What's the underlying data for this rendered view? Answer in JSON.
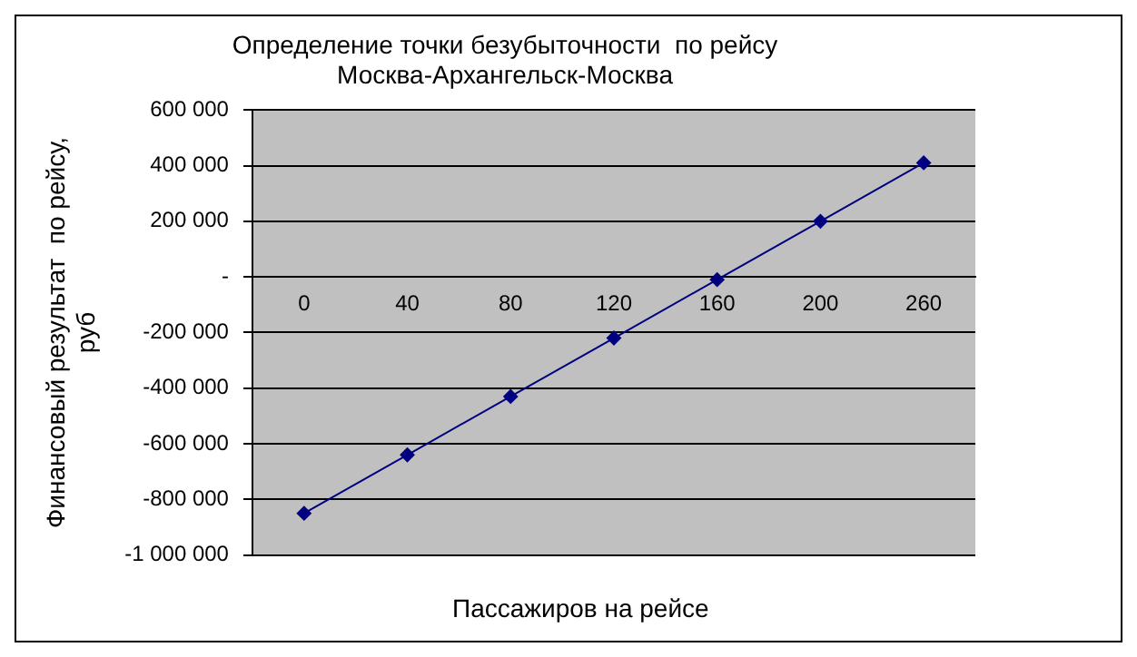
{
  "chart_data": {
    "type": "line",
    "title": "Определение точки безубыточности  по рейсу\nМосква-Архангельск-Москва",
    "xlabel": "Пассажиров на рейсе",
    "ylabel": "Финансовый результат  по рейсу,\nруб",
    "categories": [
      "0",
      "40",
      "80",
      "120",
      "160",
      "200",
      "260"
    ],
    "series": [
      {
        "color": "#000080",
        "values": [
          -850000,
          -640000,
          -430000,
          -220000,
          -10000,
          200000,
          410000
        ]
      }
    ],
    "ylim": [
      -1000000,
      600000
    ],
    "yticks": [
      {
        "value": -1000000,
        "label": "-1 000 000"
      },
      {
        "value": -800000,
        "label": "-800 000"
      },
      {
        "value": -600000,
        "label": "-600 000"
      },
      {
        "value": -400000,
        "label": "-400 000"
      },
      {
        "value": -200000,
        "label": "-200 000"
      },
      {
        "value": 0,
        "label": "-"
      },
      {
        "value": 200000,
        "label": "200 000"
      },
      {
        "value": 400000,
        "label": "400 000"
      },
      {
        "value": 600000,
        "label": "600 000"
      }
    ],
    "grid": "y",
    "legend": false,
    "marker": "diamond",
    "line_style": "solid"
  }
}
